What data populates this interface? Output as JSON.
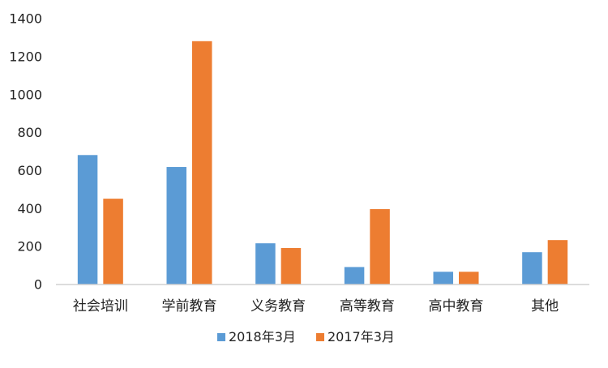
{
  "chart_data": {
    "type": "bar",
    "title": "",
    "xlabel": "",
    "ylabel": "",
    "categories": [
      "社会培训",
      "学前教育",
      "义务教育",
      "高等教育",
      "高中教育",
      "其他"
    ],
    "series": [
      {
        "name": "2018年3月",
        "color": "#5B9BD5",
        "values": [
          680,
          617,
          215,
          90,
          65,
          168
        ]
      },
      {
        "name": "2017年3月",
        "color": "#ED7D31",
        "values": [
          450,
          1280,
          190,
          395,
          65,
          232
        ]
      }
    ],
    "ylim": [
      0,
      1400
    ],
    "yticks": [
      "0",
      "200",
      "400",
      "600",
      "800",
      "1000",
      "1200",
      "1400"
    ],
    "grid": false,
    "legend": "bottom"
  }
}
